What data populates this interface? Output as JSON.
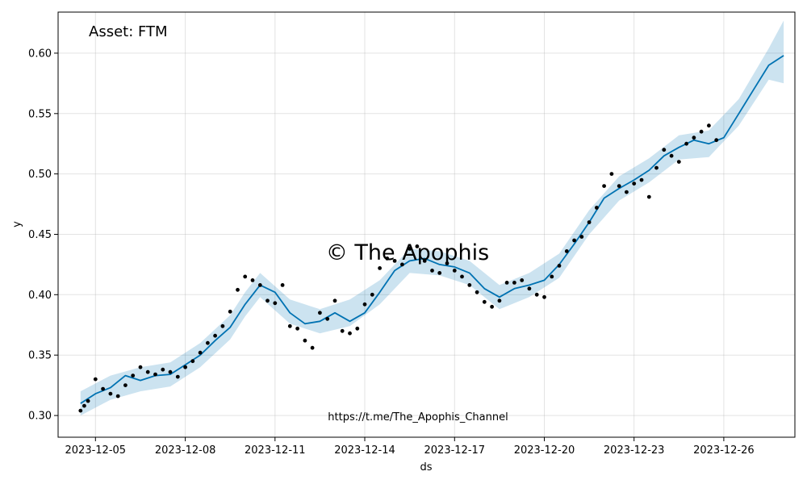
{
  "chart_data": {
    "type": "line",
    "annotation": "Asset: FTM",
    "watermark": "© The Apophis",
    "footer_link": "https://t.me/The_Apophis_Channel",
    "xlabel": "ds",
    "ylabel": "y",
    "xlim": [
      "2023-12-03 18:00",
      "2023-12-28 09:00"
    ],
    "ylim": [
      0.282,
      0.634
    ],
    "x_ticks": [
      "2023-12-05",
      "2023-12-08",
      "2023-12-11",
      "2023-12-14",
      "2023-12-17",
      "2023-12-20",
      "2023-12-23",
      "2023-12-26"
    ],
    "y_ticks": [
      0.3,
      0.35,
      0.4,
      0.45,
      0.5,
      0.55,
      0.6
    ],
    "grid": true,
    "colors": {
      "forecast": "#0072B2",
      "band": "#0072B2",
      "observed": "#000000"
    },
    "series": [
      {
        "role": "forecast",
        "x": [
          "2023-12-04 12:00",
          "2023-12-05 00:00",
          "2023-12-05 12:00",
          "2023-12-06 00:00",
          "2023-12-06 12:00",
          "2023-12-07 00:00",
          "2023-12-07 12:00",
          "2023-12-08 00:00",
          "2023-12-08 12:00",
          "2023-12-09 00:00",
          "2023-12-09 12:00",
          "2023-12-10 00:00",
          "2023-12-10 12:00",
          "2023-12-11 00:00",
          "2023-12-11 12:00",
          "2023-12-12 00:00",
          "2023-12-12 12:00",
          "2023-12-13 00:00",
          "2023-12-13 12:00",
          "2023-12-14 00:00",
          "2023-12-14 12:00",
          "2023-12-15 00:00",
          "2023-12-15 12:00",
          "2023-12-16 00:00",
          "2023-12-16 12:00",
          "2023-12-17 00:00",
          "2023-12-17 12:00",
          "2023-12-18 00:00",
          "2023-12-18 12:00",
          "2023-12-19 00:00",
          "2023-12-19 12:00",
          "2023-12-20 00:00",
          "2023-12-20 12:00",
          "2023-12-21 00:00",
          "2023-12-21 12:00",
          "2023-12-22 00:00",
          "2023-12-22 12:00",
          "2023-12-23 00:00",
          "2023-12-23 12:00",
          "2023-12-24 00:00",
          "2023-12-24 12:00",
          "2023-12-25 00:00",
          "2023-12-25 12:00",
          "2023-12-26 00:00",
          "2023-12-26 12:00",
          "2023-12-27 00:00",
          "2023-12-27 12:00",
          "2023-12-28 00:00"
        ],
        "y": [
          0.31,
          0.318,
          0.323,
          0.333,
          0.329,
          0.333,
          0.334,
          0.342,
          0.35,
          0.362,
          0.373,
          0.392,
          0.408,
          0.402,
          0.385,
          0.376,
          0.378,
          0.385,
          0.378,
          0.385,
          0.402,
          0.42,
          0.428,
          0.43,
          0.425,
          0.423,
          0.418,
          0.405,
          0.398,
          0.405,
          0.408,
          0.412,
          0.425,
          0.442,
          0.46,
          0.48,
          0.488,
          0.495,
          0.503,
          0.515,
          0.522,
          0.528,
          0.525,
          0.53,
          0.55,
          0.57,
          0.59,
          0.598
        ]
      },
      {
        "role": "uncertainty-band",
        "x": [
          "2023-12-04 12:00",
          "2023-12-05 12:00",
          "2023-12-06 12:00",
          "2023-12-07 12:00",
          "2023-12-08 12:00",
          "2023-12-09 12:00",
          "2023-12-10 00:00",
          "2023-12-10 12:00",
          "2023-12-11 12:00",
          "2023-12-12 12:00",
          "2023-12-13 12:00",
          "2023-12-14 12:00",
          "2023-12-15 12:00",
          "2023-12-16 12:00",
          "2023-12-17 12:00",
          "2023-12-18 12:00",
          "2023-12-19 12:00",
          "2023-12-20 12:00",
          "2023-12-21 12:00",
          "2023-12-22 12:00",
          "2023-12-23 12:00",
          "2023-12-24 12:00",
          "2023-12-25 12:00",
          "2023-12-26 12:00",
          "2023-12-27 12:00",
          "2023-12-28 00:00"
        ],
        "upper": [
          0.32,
          0.333,
          0.34,
          0.344,
          0.36,
          0.383,
          0.402,
          0.418,
          0.396,
          0.388,
          0.396,
          0.412,
          0.438,
          0.436,
          0.428,
          0.408,
          0.418,
          0.434,
          0.47,
          0.498,
          0.513,
          0.532,
          0.536,
          0.562,
          0.604,
          0.627
        ],
        "lower": [
          0.3,
          0.313,
          0.32,
          0.324,
          0.34,
          0.363,
          0.382,
          0.398,
          0.376,
          0.368,
          0.374,
          0.392,
          0.418,
          0.416,
          0.408,
          0.388,
          0.398,
          0.414,
          0.45,
          0.478,
          0.493,
          0.512,
          0.514,
          0.54,
          0.578,
          0.575
        ]
      },
      {
        "role": "observed",
        "x": [
          "2023-12-04 12:00",
          "2023-12-04 15:00",
          "2023-12-04 18:00",
          "2023-12-05 00:00",
          "2023-12-05 06:00",
          "2023-12-05 12:00",
          "2023-12-05 18:00",
          "2023-12-06 00:00",
          "2023-12-06 06:00",
          "2023-12-06 12:00",
          "2023-12-06 18:00",
          "2023-12-07 00:00",
          "2023-12-07 06:00",
          "2023-12-07 12:00",
          "2023-12-07 18:00",
          "2023-12-08 00:00",
          "2023-12-08 06:00",
          "2023-12-08 12:00",
          "2023-12-08 18:00",
          "2023-12-09 00:00",
          "2023-12-09 06:00",
          "2023-12-09 12:00",
          "2023-12-09 18:00",
          "2023-12-10 00:00",
          "2023-12-10 06:00",
          "2023-12-10 12:00",
          "2023-12-10 18:00",
          "2023-12-11 00:00",
          "2023-12-11 06:00",
          "2023-12-11 12:00",
          "2023-12-11 18:00",
          "2023-12-12 00:00",
          "2023-12-12 06:00",
          "2023-12-12 12:00",
          "2023-12-12 18:00",
          "2023-12-13 00:00",
          "2023-12-13 06:00",
          "2023-12-13 12:00",
          "2023-12-13 18:00",
          "2023-12-14 00:00",
          "2023-12-14 06:00",
          "2023-12-14 12:00",
          "2023-12-14 18:00",
          "2023-12-15 00:00",
          "2023-12-15 06:00",
          "2023-12-15 12:00",
          "2023-12-15 18:00",
          "2023-12-16 00:00",
          "2023-12-16 06:00",
          "2023-12-16 12:00",
          "2023-12-16 18:00",
          "2023-12-17 00:00",
          "2023-12-17 06:00",
          "2023-12-17 12:00",
          "2023-12-17 18:00",
          "2023-12-18 00:00",
          "2023-12-18 06:00",
          "2023-12-18 12:00",
          "2023-12-18 18:00",
          "2023-12-19 00:00",
          "2023-12-19 06:00",
          "2023-12-19 12:00",
          "2023-12-19 18:00",
          "2023-12-20 00:00",
          "2023-12-20 06:00",
          "2023-12-20 12:00",
          "2023-12-20 18:00",
          "2023-12-21 00:00",
          "2023-12-21 06:00",
          "2023-12-21 12:00",
          "2023-12-21 18:00",
          "2023-12-22 00:00",
          "2023-12-22 06:00",
          "2023-12-22 12:00",
          "2023-12-22 18:00",
          "2023-12-23 00:00",
          "2023-12-23 06:00",
          "2023-12-23 12:00",
          "2023-12-23 18:00",
          "2023-12-24 00:00",
          "2023-12-24 06:00",
          "2023-12-24 12:00",
          "2023-12-24 18:00",
          "2023-12-25 00:00",
          "2023-12-25 06:00",
          "2023-12-25 12:00",
          "2023-12-25 18:00"
        ],
        "y": [
          0.304,
          0.308,
          0.312,
          0.33,
          0.322,
          0.318,
          0.316,
          0.325,
          0.333,
          0.34,
          0.336,
          0.334,
          0.338,
          0.336,
          0.332,
          0.34,
          0.345,
          0.352,
          0.36,
          0.366,
          0.374,
          0.386,
          0.404,
          0.415,
          0.412,
          0.408,
          0.395,
          0.393,
          0.408,
          0.374,
          0.372,
          0.362,
          0.356,
          0.385,
          0.38,
          0.395,
          0.37,
          0.368,
          0.372,
          0.392,
          0.4,
          0.422,
          0.43,
          0.428,
          0.425,
          0.438,
          0.44,
          0.428,
          0.42,
          0.418,
          0.426,
          0.42,
          0.415,
          0.408,
          0.402,
          0.394,
          0.39,
          0.395,
          0.41,
          0.41,
          0.412,
          0.405,
          0.4,
          0.398,
          0.415,
          0.424,
          0.436,
          0.445,
          0.448,
          0.46,
          0.472,
          0.49,
          0.5,
          0.49,
          0.485,
          0.492,
          0.495,
          0.481,
          0.505,
          0.52,
          0.515,
          0.51,
          0.525,
          0.53,
          0.535,
          0.54,
          0.528
        ]
      }
    ]
  }
}
